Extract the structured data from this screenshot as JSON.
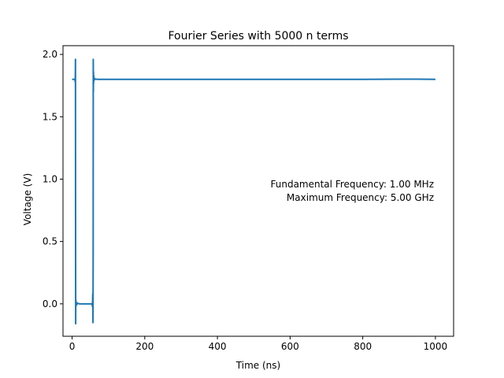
{
  "chart_data": {
    "type": "line",
    "title": "Fourier Series with 5000 n terms",
    "xlabel": "Time (ns)",
    "ylabel": "Voltage (V)",
    "xlim": [
      -25,
      1050
    ],
    "ylim": [
      -0.26,
      2.07
    ],
    "x_ticks": [
      0,
      200,
      400,
      600,
      800,
      1000
    ],
    "x_tick_labels": [
      "0",
      "200",
      "400",
      "600",
      "800",
      "1000"
    ],
    "y_ticks": [
      0.0,
      0.5,
      1.0,
      1.5,
      2.0
    ],
    "y_tick_labels": [
      "0.0",
      "0.5",
      "1.0",
      "1.5",
      "2.0"
    ],
    "grid": false,
    "legend": "none",
    "series": [
      {
        "color": "#1f77b4",
        "x": [
          0,
          8,
          8.5,
          9,
          9.3,
          9.6,
          9.9,
          10.1,
          10.5,
          11,
          12,
          15,
          20,
          40,
          55,
          56,
          57,
          57.5,
          58,
          58.3,
          58.6,
          58.9,
          59.2,
          59.5,
          60,
          61,
          63,
          66,
          70,
          80,
          100,
          200,
          400,
          600,
          800,
          950,
          1000
        ],
        "y": [
          1.8,
          1.8,
          1.78,
          1.85,
          1.96,
          0.8,
          -0.16,
          0.04,
          -0.02,
          0.02,
          -0.01,
          0.005,
          0.0,
          0.0,
          0.0,
          -0.02,
          0.08,
          -0.15,
          0.4,
          1.96,
          1.7,
          1.86,
          1.77,
          1.83,
          1.79,
          1.81,
          1.8,
          1.802,
          1.8,
          1.8,
          1.8,
          1.8,
          1.8,
          1.8,
          1.8,
          1.802,
          1.8
        ]
      }
    ],
    "annotations": [
      "Fundamental Frequency: 1.00 MHz",
      "Maximum Frequency: 5.00 GHz"
    ]
  }
}
